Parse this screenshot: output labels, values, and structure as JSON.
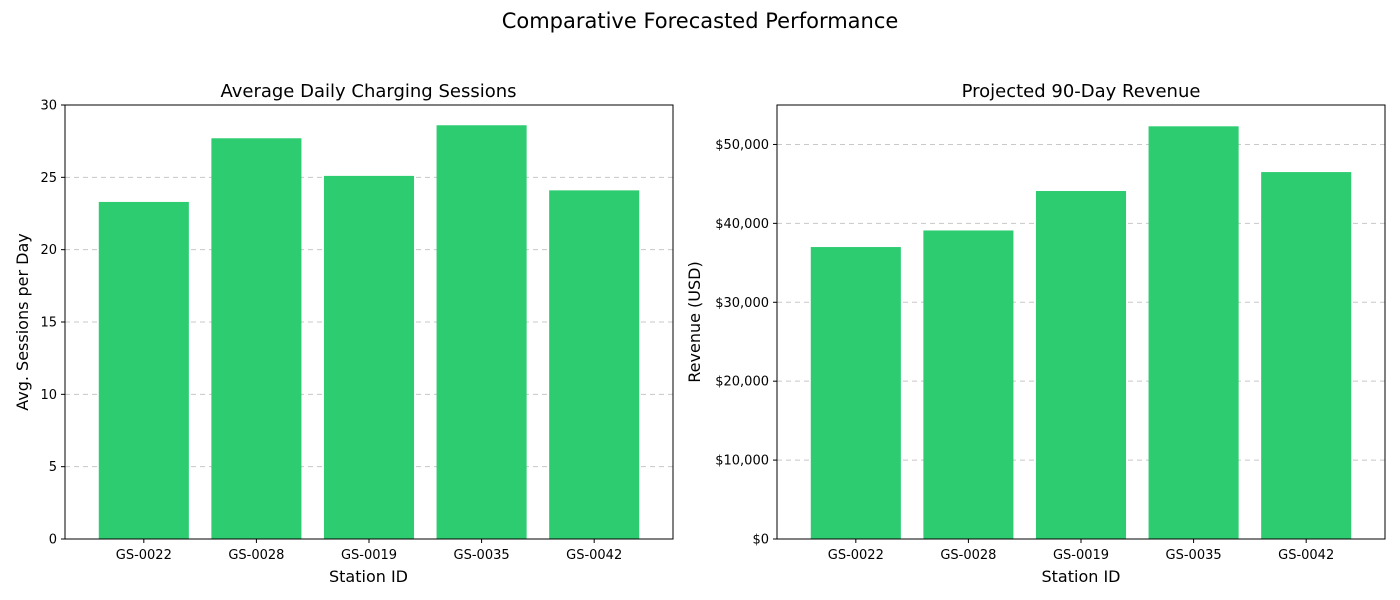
{
  "figure": {
    "title": "Comparative Forecasted Performance"
  },
  "chart_data": [
    {
      "type": "bar",
      "title": "Average Daily Charging Sessions",
      "xlabel": "Station ID",
      "ylabel": "Avg. Sessions per Day",
      "categories": [
        "GS-0022",
        "GS-0028",
        "GS-0019",
        "GS-0035",
        "GS-0042"
      ],
      "values": [
        23.3,
        27.7,
        25.1,
        28.6,
        24.1
      ],
      "ylim": [
        0,
        30
      ],
      "yticks": [
        0,
        5,
        10,
        15,
        20,
        25,
        30
      ],
      "ytick_labels": [
        "0",
        "5",
        "10",
        "15",
        "20",
        "25",
        "30"
      ],
      "grid": "y-dashed",
      "bar_color": "#2ecc71"
    },
    {
      "type": "bar",
      "title": "Projected 90-Day Revenue",
      "xlabel": "Station ID",
      "ylabel": "Revenue (USD)",
      "categories": [
        "GS-0022",
        "GS-0028",
        "GS-0019",
        "GS-0035",
        "GS-0042"
      ],
      "values": [
        37000,
        39100,
        44100,
        52300,
        46500
      ],
      "ylim": [
        0,
        55000
      ],
      "yticks": [
        0,
        10000,
        20000,
        30000,
        40000,
        50000
      ],
      "ytick_labels": [
        "$0",
        "$10,000",
        "$20,000",
        "$30,000",
        "$40,000",
        "$50,000"
      ],
      "grid": "y-dashed",
      "bar_color": "#2ecc71"
    }
  ]
}
